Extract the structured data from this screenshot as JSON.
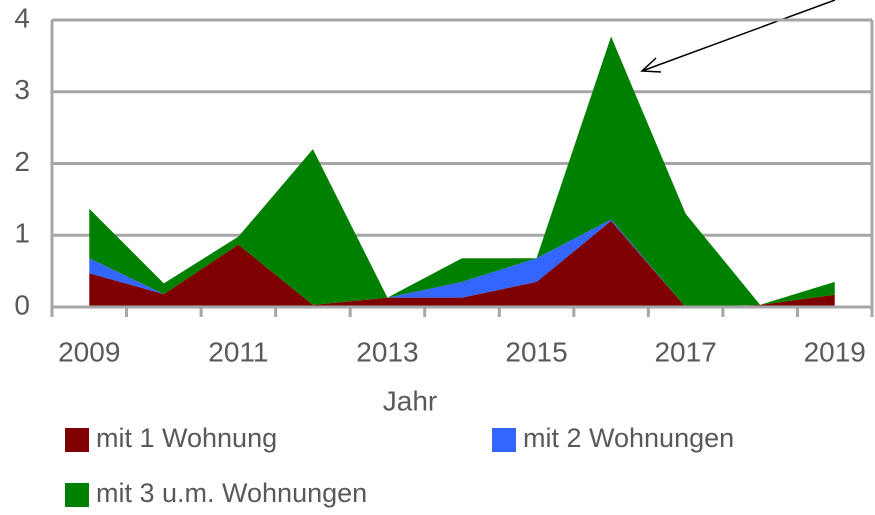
{
  "chart_data": {
    "type": "stacked_area",
    "x_label": "Jahr",
    "categories": [
      "2009",
      null,
      "2011",
      null,
      "2013",
      null,
      "2015",
      null,
      "2017",
      null,
      "2019"
    ],
    "series": [
      {
        "name": "mit 1 Wohnung",
        "color": "#7f0000",
        "values": [
          0.47,
          0.18,
          0.87,
          0.03,
          0.13,
          0.13,
          0.35,
          1.2,
          0,
          0.03,
          0.17
        ]
      },
      {
        "name": "mit 2 Wohnungen",
        "color": "#3366ff",
        "values": [
          0.21,
          0,
          0,
          0,
          0,
          0.22,
          0.33,
          0.02,
          0,
          0,
          0
        ]
      },
      {
        "name": "mit 3 u.m. Wohnungen",
        "color": "#008000",
        "values": [
          0.69,
          0.15,
          0.11,
          2.17,
          0,
          0.33,
          0,
          2.55,
          1.3,
          0,
          0.18
        ]
      }
    ],
    "ylim": [
      0,
      4
    ],
    "yticks": [
      0,
      1,
      2,
      3,
      4
    ],
    "grid": true,
    "legend": "bottom"
  }
}
